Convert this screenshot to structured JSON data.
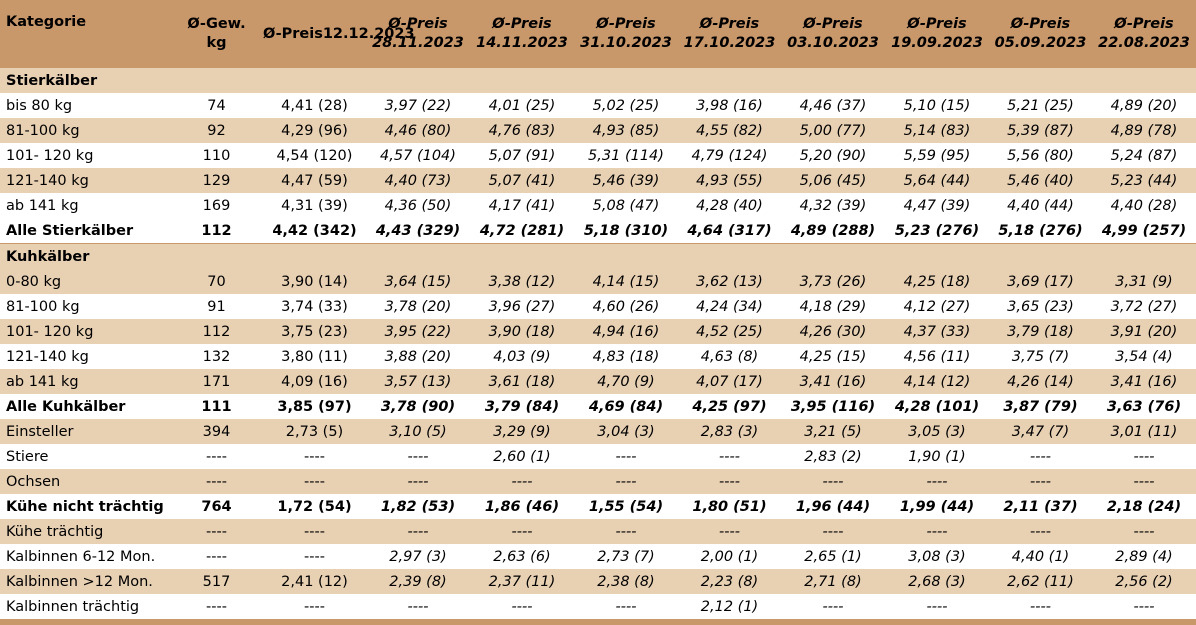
{
  "header": {
    "kategorie": "Kategorie",
    "weight_line1": "Ø-Gew.",
    "weight_line2": "kg",
    "price_label": "Ø-Preis",
    "dates": [
      "12.12.2023",
      "28.11.2023",
      "14.11.2023",
      "31.10.2023",
      "17.10.2023",
      "03.10.2023",
      "19.09.2023",
      "05.09.2023",
      "22.08.2023"
    ]
  },
  "rows": [
    {
      "type": "section",
      "label": "Stierkälber"
    },
    {
      "type": "light",
      "label": "bis 80 kg",
      "kg": "74",
      "values": [
        "4,41 (28)",
        "3,97 (22)",
        "4,01 (25)",
        "5,02 (25)",
        "3,98 (16)",
        "4,46 (37)",
        "5,10 (15)",
        "5,21 (25)",
        "4,89 (20)"
      ]
    },
    {
      "type": "tan",
      "label": "81-100 kg",
      "kg": "92",
      "values": [
        "4,29 (96)",
        "4,46 (80)",
        "4,76 (83)",
        "4,93 (85)",
        "4,55 (82)",
        "5,00 (77)",
        "5,14 (83)",
        "5,39 (87)",
        "4,89 (78)"
      ]
    },
    {
      "type": "light",
      "label": "101- 120 kg",
      "kg": "110",
      "values": [
        "4,54 (120)",
        "4,57 (104)",
        "5,07 (91)",
        "5,31 (114)",
        "4,79 (124)",
        "5,20 (90)",
        "5,59 (95)",
        "5,56 (80)",
        "5,24 (87)"
      ]
    },
    {
      "type": "tan",
      "label": "121-140 kg",
      "kg": "129",
      "values": [
        "4,47 (59)",
        "4,40 (73)",
        "5,07 (41)",
        "5,46 (39)",
        "4,93 (55)",
        "5,06 (45)",
        "5,64 (44)",
        "5,46 (40)",
        "5,23 (44)"
      ]
    },
    {
      "type": "light",
      "label": "ab 141 kg",
      "kg": "169",
      "values": [
        "4,31 (39)",
        "4,36 (50)",
        "4,17 (41)",
        "5,08 (47)",
        "4,28 (40)",
        "4,32 (39)",
        "4,47 (39)",
        "4,40 (44)",
        "4,40 (28)"
      ]
    },
    {
      "type": "total",
      "label": "Alle Stierkälber",
      "kg": "112",
      "values": [
        "4,42 (342)",
        "4,43 (329)",
        "4,72 (281)",
        "5,18 (310)",
        "4,64 (317)",
        "4,89 (288)",
        "5,23 (276)",
        "5,18 (276)",
        "4,99 (257)"
      ]
    },
    {
      "type": "section",
      "label": "Kuhkälber"
    },
    {
      "type": "tan",
      "label": "0-80 kg",
      "kg": "70",
      "values": [
        "3,90 (14)",
        "3,64 (15)",
        "3,38 (12)",
        "4,14 (15)",
        "3,62 (13)",
        "3,73 (26)",
        "4,25 (18)",
        "3,69 (17)",
        "3,31 (9)"
      ]
    },
    {
      "type": "light",
      "label": "81-100 kg",
      "kg": "91",
      "values": [
        "3,74 (33)",
        "3,78 (20)",
        "3,96 (27)",
        "4,60 (26)",
        "4,24 (34)",
        "4,18 (29)",
        "4,12 (27)",
        "3,65 (23)",
        "3,72 (27)"
      ]
    },
    {
      "type": "tan",
      "label": "101- 120 kg",
      "kg": "112",
      "values": [
        "3,75 (23)",
        "3,95 (22)",
        "3,90 (18)",
        "4,94 (16)",
        "4,52 (25)",
        "4,26 (30)",
        "4,37 (33)",
        "3,79 (18)",
        "3,91 (20)"
      ]
    },
    {
      "type": "light",
      "label": "121-140 kg",
      "kg": "132",
      "values": [
        "3,80 (11)",
        "3,88 (20)",
        "4,03 (9)",
        "4,83 (18)",
        "4,63 (8)",
        "4,25 (15)",
        "4,56 (11)",
        "3,75 (7)",
        "3,54 (4)"
      ]
    },
    {
      "type": "tan",
      "label": "ab 141 kg",
      "kg": "171",
      "values": [
        "4,09 (16)",
        "3,57 (13)",
        "3,61 (18)",
        "4,70 (9)",
        "4,07 (17)",
        "3,41 (16)",
        "4,14 (12)",
        "4,26 (14)",
        "3,41 (16)"
      ]
    },
    {
      "type": "total",
      "label": "Alle Kuhkälber",
      "kg": "111",
      "values": [
        "3,85 (97)",
        "3,78 (90)",
        "3,79 (84)",
        "4,69 (84)",
        "4,25 (97)",
        "3,95 (116)",
        "4,28 (101)",
        "3,87 (79)",
        "3,63 (76)"
      ]
    },
    {
      "type": "tan",
      "label": "Einsteller",
      "kg": "394",
      "values": [
        "2,73 (5)",
        "3,10 (5)",
        "3,29 (9)",
        "3,04 (3)",
        "2,83 (3)",
        "3,21 (5)",
        "3,05 (3)",
        "3,47 (7)",
        "3,01 (11)"
      ]
    },
    {
      "type": "light",
      "label": "Stiere",
      "kg": "----",
      "values": [
        "----",
        "----",
        "2,60 (1)",
        "----",
        "----",
        "2,83 (2)",
        "1,90 (1)",
        "----",
        "----"
      ]
    },
    {
      "type": "tan",
      "label": "Ochsen",
      "kg": "----",
      "values": [
        "----",
        "----",
        "----",
        "----",
        "----",
        "----",
        "----",
        "----",
        "----"
      ]
    },
    {
      "type": "total",
      "label": "Kühe nicht trächtig",
      "kg": "764",
      "values": [
        "1,72 (54)",
        "1,82 (53)",
        "1,86 (46)",
        "1,55 (54)",
        "1,80 (51)",
        "1,96 (44)",
        "1,99 (44)",
        "2,11 (37)",
        "2,18 (24)"
      ]
    },
    {
      "type": "tan",
      "label": "Kühe trächtig",
      "kg": "----",
      "values": [
        "----",
        "----",
        "----",
        "----",
        "----",
        "----",
        "----",
        "----",
        "----"
      ]
    },
    {
      "type": "light",
      "label": "Kalbinnen 6-12 Mon.",
      "kg": "----",
      "values": [
        "----",
        "2,97 (3)",
        "2,63 (6)",
        "2,73 (7)",
        "2,00 (1)",
        "2,65 (1)",
        "3,08 (3)",
        "4,40 (1)",
        "2,89 (4)"
      ]
    },
    {
      "type": "tan",
      "label": "Kalbinnen >12 Mon.",
      "kg": "517",
      "values": [
        "2,41 (12)",
        "2,39 (8)",
        "2,37 (11)",
        "2,38 (8)",
        "2,23 (8)",
        "2,71 (8)",
        "2,68 (3)",
        "2,62 (11)",
        "2,56 (2)"
      ]
    },
    {
      "type": "light",
      "label": "Kalbinnen trächtig",
      "kg": "----",
      "values": [
        "----",
        "----",
        "----",
        "----",
        "2,12 (1)",
        "----",
        "----",
        "----",
        "----"
      ]
    }
  ]
}
